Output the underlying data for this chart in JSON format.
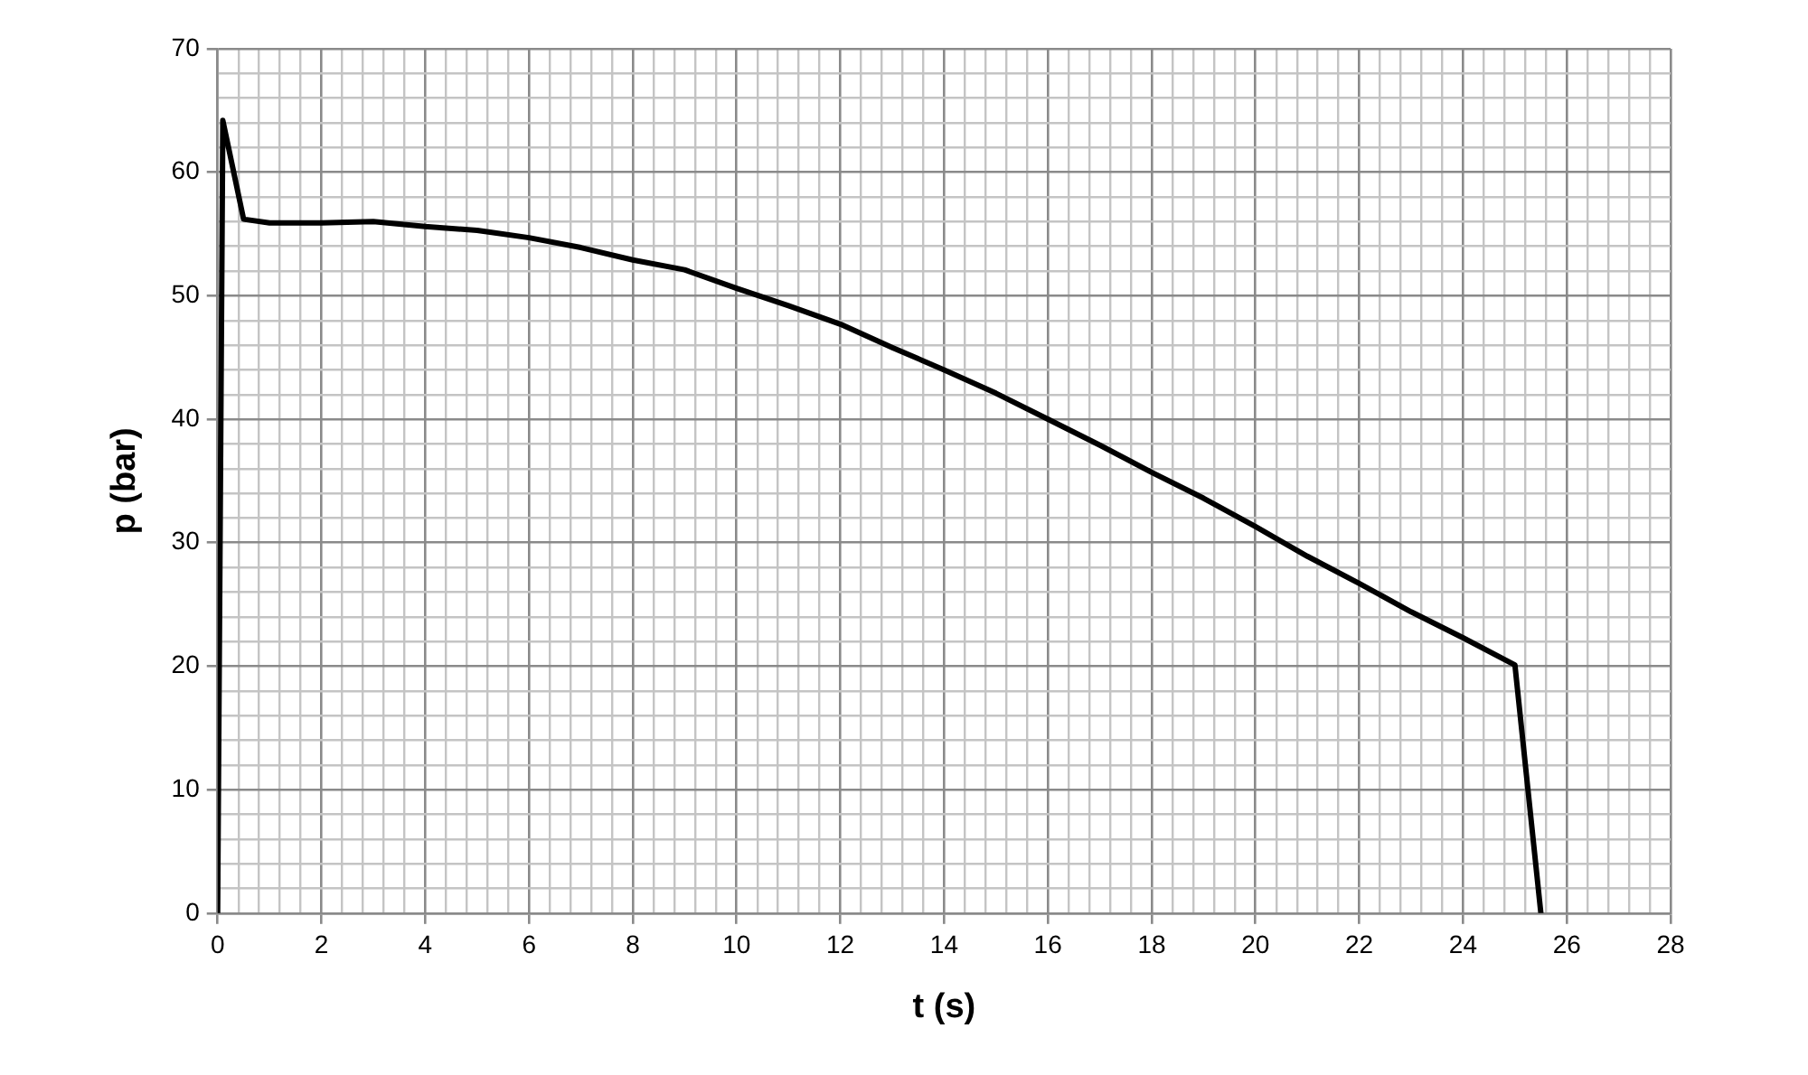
{
  "chart_data": {
    "type": "line",
    "xlabel": "t (s)",
    "ylabel": "p (bar)",
    "x": [
      0,
      0.1,
      0.5,
      1,
      2,
      3,
      4,
      5,
      6,
      7,
      8,
      9,
      10,
      11,
      12,
      13,
      14,
      15,
      16,
      17,
      18,
      19,
      20,
      21,
      22,
      23,
      24,
      25,
      25.5
    ],
    "series": [
      {
        "color": "#000000",
        "values": [
          0,
          64.2,
          56.2,
          55.9,
          55.9,
          56,
          55.6,
          55.3,
          54.7,
          53.9,
          52.9,
          52.1,
          50.6,
          49.2,
          47.7,
          45.8,
          44,
          42.1,
          40,
          37.9,
          35.7,
          33.6,
          31.3,
          28.9,
          26.7,
          24.4,
          22.3,
          20.1,
          0
        ]
      }
    ],
    "xlim": [
      0,
      28
    ],
    "ylim": [
      0,
      70
    ],
    "xticks": [
      0,
      {
        "value": 0.4,
        "label": null
      },
      {
        "value": 0.8,
        "label": null
      },
      {
        "value": 1.2,
        "label": null
      },
      {
        "value": 1.6,
        "label": null
      },
      2,
      {
        "value": 2.4,
        "label": null
      },
      {
        "value": 2.8,
        "label": null
      },
      {
        "value": 3.2,
        "label": null
      },
      {
        "value": 3.6,
        "label": null
      },
      4,
      {
        "value": 4.4,
        "label": null
      },
      {
        "value": 4.8,
        "label": null
      },
      {
        "value": 5.2,
        "label": null
      },
      {
        "value": 5.6,
        "label": null
      },
      6,
      {
        "value": 6.4,
        "label": null
      },
      {
        "value": 6.8,
        "label": null
      },
      {
        "value": 7.2,
        "label": null
      },
      {
        "value": 7.6,
        "label": null
      },
      8,
      {
        "value": 8.4,
        "label": null
      },
      {
        "value": 8.8,
        "label": null
      },
      {
        "value": 9.2,
        "label": null
      },
      {
        "value": 9.6,
        "label": null
      },
      10,
      {
        "value": 10.4,
        "label": null
      },
      {
        "value": 10.8,
        "label": null
      },
      {
        "value": 11.2,
        "label": null
      },
      {
        "value": 11.6,
        "label": null
      },
      12,
      {
        "value": 12.4,
        "label": null
      },
      {
        "value": 12.8,
        "label": null
      },
      {
        "value": 13.2,
        "label": null
      },
      {
        "value": 13.6,
        "label": null
      },
      14,
      {
        "value": 14.4,
        "label": null
      },
      {
        "value": 14.8,
        "label": null
      },
      {
        "value": 15.2,
        "label": null
      },
      {
        "value": 15.6,
        "label": null
      },
      16,
      {
        "value": 16.4,
        "label": null
      },
      {
        "value": 16.8,
        "label": null
      },
      {
        "value": 17.2,
        "label": null
      },
      {
        "value": 17.6,
        "label": null
      },
      18,
      {
        "value": 18.4,
        "label": null
      },
      {
        "value": 18.8,
        "label": null
      },
      {
        "value": 19.2,
        "label": null
      },
      {
        "value": 19.6,
        "label": null
      },
      20,
      {
        "value": 20.4,
        "label": null
      },
      {
        "value": 20.8,
        "label": null
      },
      {
        "value": 21.2,
        "label": null
      },
      {
        "value": 21.6,
        "label": null
      },
      22,
      {
        "value": 22.4,
        "label": null
      },
      {
        "value": 22.8,
        "label": null
      },
      {
        "value": 23.2,
        "label": null
      },
      {
        "value": 23.6,
        "label": null
      },
      24,
      {
        "value": 24.4,
        "label": null
      },
      {
        "value": 24.8,
        "label": null
      },
      {
        "value": 25.2,
        "label": null
      },
      {
        "value": 25.6,
        "label": null
      },
      26,
      {
        "value": 26.4,
        "label": null
      },
      {
        "value": 26.8,
        "label": null
      },
      {
        "value": 27.2,
        "label": null
      },
      {
        "value": 27.6,
        "label": null
      },
      28
    ],
    "yticks": [
      0,
      {
        "value": 2,
        "label": null
      },
      {
        "value": 4,
        "label": null
      },
      {
        "value": 6,
        "label": null
      },
      {
        "value": 8,
        "label": null
      },
      10,
      {
        "value": 12,
        "label": null
      },
      {
        "value": 14,
        "label": null
      },
      {
        "value": 16,
        "label": null
      },
      {
        "value": 18,
        "label": null
      },
      20,
      {
        "value": 22,
        "label": null
      },
      {
        "value": 24,
        "label": null
      },
      {
        "value": 26,
        "label": null
      },
      {
        "value": 28,
        "label": null
      },
      30,
      {
        "value": 32,
        "label": null
      },
      {
        "value": 34,
        "label": null
      },
      {
        "value": 36,
        "label": null
      },
      {
        "value": 38,
        "label": null
      },
      40,
      {
        "value": 42,
        "label": null
      },
      {
        "value": 44,
        "label": null
      },
      {
        "value": 46,
        "label": null
      },
      {
        "value": 48,
        "label": null
      },
      50,
      {
        "value": 52,
        "label": null
      },
      {
        "value": 54,
        "label": null
      },
      {
        "value": 56,
        "label": null
      },
      {
        "value": 58,
        "label": null
      },
      60,
      {
        "value": 62,
        "label": null
      },
      {
        "value": 64,
        "label": null
      },
      {
        "value": 66,
        "label": null
      },
      {
        "value": 68,
        "label": null
      },
      70
    ],
    "grid": true
  }
}
